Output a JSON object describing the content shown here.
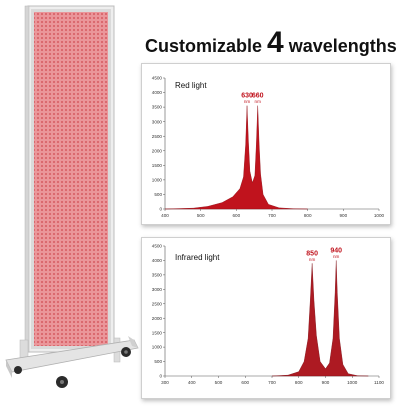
{
  "headline": {
    "prefix": "Customizable",
    "number": "4",
    "suffix": "wavelengths"
  },
  "colors": {
    "red": "#c0131d",
    "crimson": "#ad1a22",
    "panel_face": "#e58a8e",
    "frame": "#e3e3e3"
  },
  "chart_data": [
    {
      "type": "area",
      "title": "Red light",
      "xlim": [
        400,
        1000
      ],
      "ylim": [
        0,
        4500
      ],
      "xticks": [
        "400",
        "500",
        "600",
        "700",
        "800",
        "900",
        "1000"
      ],
      "yticks": [
        "0",
        "500",
        "1000",
        "1500",
        "2000",
        "2500",
        "3000",
        "3500",
        "4000",
        "4500"
      ],
      "peak_labels": [
        {
          "value": "630",
          "unit": "nm",
          "x": 630
        },
        {
          "value": "660",
          "unit": "nm",
          "x": 660
        }
      ],
      "series": [
        {
          "x": [
            400,
            480,
            520,
            560,
            590,
            610,
            620,
            626,
            630,
            634,
            638,
            645,
            652,
            656,
            660,
            664,
            668,
            675,
            690,
            720,
            760,
            800
          ],
          "y": [
            0,
            30,
            90,
            220,
            420,
            700,
            1100,
            2200,
            3550,
            2300,
            1300,
            900,
            1150,
            2200,
            3550,
            2200,
            1200,
            500,
            160,
            40,
            10,
            0
          ]
        }
      ]
    },
    {
      "type": "area",
      "title": "Infrared light",
      "xlim": [
        300,
        1100
      ],
      "ylim": [
        0,
        4500
      ],
      "xticks": [
        "300",
        "400",
        "500",
        "600",
        "700",
        "800",
        "900",
        "1000",
        "1100"
      ],
      "yticks": [
        "0",
        "500",
        "1000",
        "1500",
        "2000",
        "2500",
        "3000",
        "3500",
        "4000",
        "4500"
      ],
      "peak_labels": [
        {
          "value": "850",
          "unit": "nm",
          "x": 850
        },
        {
          "value": "940",
          "unit": "nm",
          "x": 940
        }
      ],
      "series": [
        {
          "x": [
            700,
            760,
            800,
            820,
            835,
            843,
            850,
            857,
            866,
            880,
            900,
            915,
            928,
            936,
            940,
            944,
            952,
            965,
            985,
            1020,
            1060
          ],
          "y": [
            0,
            30,
            150,
            500,
            1300,
            2600,
            3900,
            2600,
            1400,
            500,
            250,
            450,
            1300,
            2900,
            4000,
            2900,
            1300,
            400,
            80,
            10,
            0
          ]
        }
      ]
    }
  ]
}
